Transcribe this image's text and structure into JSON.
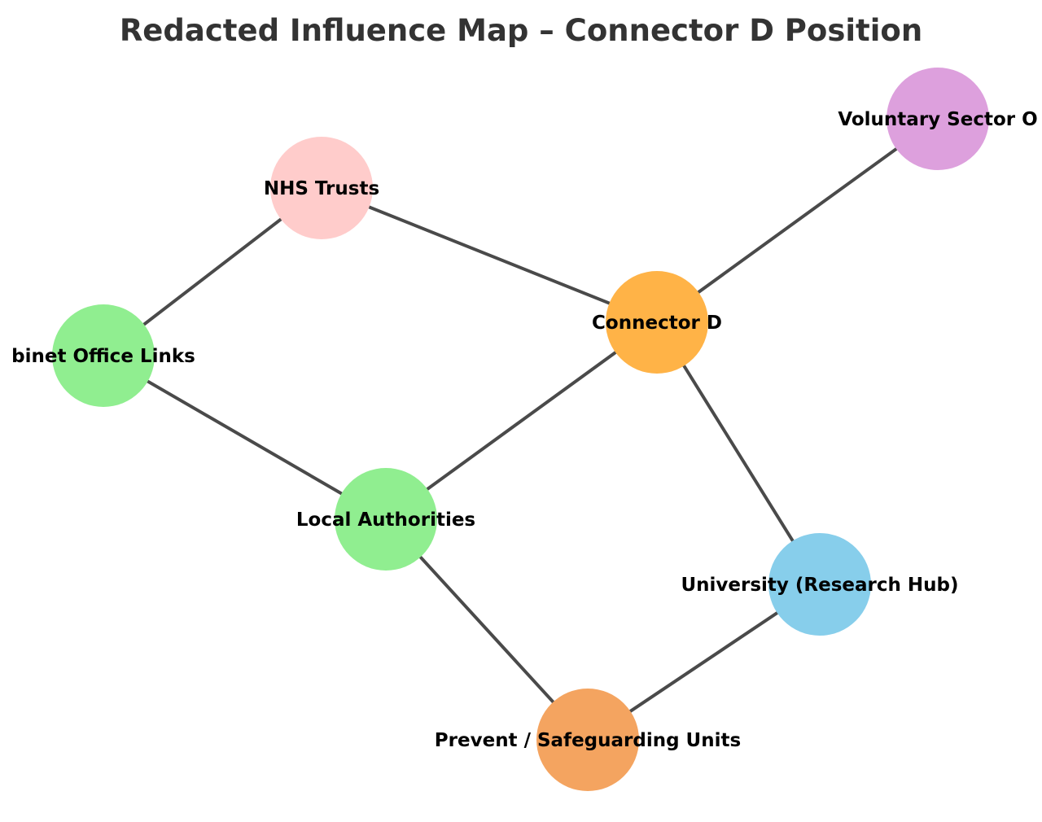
{
  "title": "Redacted Influence Map – Connector D Position",
  "nodes": [
    {
      "id": "nhs",
      "label": "NHS Trusts",
      "color": "#ffcccb"
    },
    {
      "id": "voluntary",
      "label": "Voluntary Sector O",
      "color": "#dda0dd"
    },
    {
      "id": "connector",
      "label": "Connector D",
      "color": "#ffb347"
    },
    {
      "id": "cabinet",
      "label": "binet Office Links",
      "color": "#90ee90"
    },
    {
      "id": "local",
      "label": "Local Authorities",
      "color": "#90ee90"
    },
    {
      "id": "university",
      "label": "University (Research Hub)",
      "color": "#87ceeb"
    },
    {
      "id": "prevent",
      "label": "Prevent / Safeguarding Units",
      "color": "#f4a460"
    }
  ],
  "edges": [
    [
      "cabinet",
      "nhs"
    ],
    [
      "nhs",
      "connector"
    ],
    [
      "connector",
      "voluntary"
    ],
    [
      "cabinet",
      "local"
    ],
    [
      "local",
      "connector"
    ],
    [
      "connector",
      "university"
    ],
    [
      "local",
      "prevent"
    ],
    [
      "prevent",
      "university"
    ]
  ],
  "edge_color": "#4a4a4a"
}
